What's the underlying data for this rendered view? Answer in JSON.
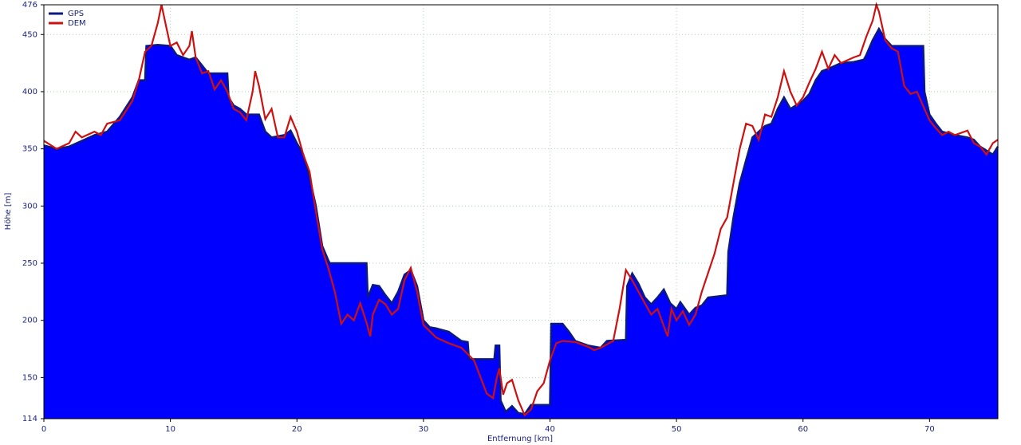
{
  "chart_data": {
    "type": "area-line",
    "xlabel": "Entfernung [km]",
    "ylabel": "Höhe [m]",
    "xlim": [
      0,
      75.4
    ],
    "ylim": [
      114,
      476
    ],
    "xticks": [
      0,
      10,
      20,
      30,
      40,
      50,
      60,
      70
    ],
    "yticks": [
      114,
      150,
      200,
      250,
      300,
      350,
      400,
      450,
      476
    ],
    "grid": true,
    "legend": "top-left",
    "series": [
      {
        "name": "GPS",
        "color": "#0000ff",
        "line_color": "#0a1a80",
        "x": [
          0,
          1,
          2,
          3,
          4,
          5,
          6,
          7,
          7.5,
          8,
          8.1,
          9,
          10,
          10.5,
          11,
          11.5,
          12,
          12.5,
          13,
          14,
          14.5,
          14.6,
          15,
          15.5,
          16,
          17,
          17.5,
          18,
          19,
          19.5,
          20,
          20.5,
          21,
          21.5,
          22,
          22.5,
          22.6,
          25.5,
          25.6,
          26,
          26.5,
          27,
          27.5,
          28,
          28.5,
          29,
          29.5,
          30,
          30.5,
          31,
          32,
          33,
          33.5,
          33.6,
          35,
          35.6,
          35.7,
          36,
          36.1,
          36.5,
          37,
          37.5,
          38,
          38.5,
          40,
          40.1,
          41,
          41.5,
          42,
          43,
          44,
          44.5,
          46,
          46.1,
          46.5,
          47,
          47.5,
          48,
          48.5,
          49,
          49.5,
          50,
          50.3,
          51,
          51.5,
          52,
          52.5,
          54,
          54.1,
          54.5,
          55,
          55.5,
          56,
          57,
          57.5,
          58,
          58.5,
          59,
          60,
          60.5,
          61,
          61.5,
          62,
          63,
          64,
          64.8,
          65,
          65.5,
          66,
          66.5,
          67,
          69.5,
          69.6,
          70,
          70.5,
          71,
          72,
          73,
          73.5,
          74,
          75,
          75.4
        ],
        "values": [
          353,
          350,
          352,
          357,
          362,
          365,
          378,
          395,
          410,
          410,
          440,
          441,
          440,
          432,
          430,
          428,
          430,
          423,
          416,
          416,
          416,
          395,
          388,
          385,
          380,
          380,
          365,
          360,
          362,
          366,
          355,
          345,
          325,
          300,
          265,
          252,
          250,
          250,
          220,
          231,
          230,
          222,
          215,
          225,
          240,
          244,
          230,
          200,
          194,
          193,
          190,
          182,
          181,
          166,
          166,
          166,
          178,
          178,
          130,
          120,
          125,
          119,
          118,
          126,
          126,
          197,
          197,
          190,
          182,
          178,
          176,
          182,
          183,
          230,
          241,
          232,
          220,
          214,
          220,
          227,
          215,
          210,
          216,
          205,
          211,
          213,
          220,
          222,
          260,
          290,
          320,
          340,
          360,
          370,
          372,
          385,
          395,
          385,
          392,
          398,
          410,
          418,
          420,
          425,
          426,
          428,
          432,
          445,
          455,
          446,
          440,
          440,
          400,
          380,
          372,
          365,
          362,
          360,
          358,
          352,
          345,
          352
        ]
      },
      {
        "name": "DEM",
        "color": "#cc1111",
        "x": [
          0,
          1,
          2,
          2.5,
          3,
          4,
          4.5,
          5,
          6,
          7,
          7.5,
          8,
          8.5,
          9,
          9.3,
          9.7,
          10,
          10.5,
          11,
          11.5,
          11.7,
          12,
          12.5,
          13,
          13.5,
          14,
          14.5,
          15,
          15.5,
          16,
          16.5,
          16.7,
          17,
          17.5,
          18,
          18.5,
          19,
          19.5,
          20,
          20.5,
          21,
          21.5,
          22,
          22.5,
          23,
          23.5,
          24,
          24.5,
          25,
          25.5,
          25.8,
          26,
          26.5,
          27,
          27.5,
          28,
          28.5,
          29,
          29.5,
          30,
          31,
          32,
          33,
          34,
          35,
          35.5,
          35.8,
          36,
          36.3,
          36.6,
          37,
          37.5,
          38,
          38.5,
          39,
          39.5,
          40,
          40.5,
          41,
          42,
          43,
          43.5,
          44,
          45,
          45.5,
          46,
          46.5,
          47,
          47.5,
          48,
          48.5,
          49,
          49.3,
          49.6,
          50,
          50.5,
          51,
          51.5,
          52,
          53,
          53.5,
          54,
          54.5,
          55,
          55.5,
          56,
          56.5,
          57,
          57.5,
          58,
          58.5,
          59,
          59.5,
          60,
          60.5,
          61,
          61.5,
          62,
          62.5,
          63,
          64,
          64.5,
          65,
          65.5,
          65.8,
          66,
          66.5,
          67,
          67.5,
          68,
          68.5,
          69,
          70,
          70.5,
          71,
          71.5,
          72,
          73,
          73.5,
          74,
          74.5,
          75,
          75.4
        ],
        "values": [
          357,
          350,
          355,
          365,
          360,
          365,
          362,
          372,
          375,
          392,
          410,
          435,
          440,
          460,
          476,
          455,
          440,
          443,
          432,
          440,
          453,
          430,
          416,
          418,
          402,
          410,
          400,
          385,
          382,
          375,
          400,
          418,
          405,
          376,
          385,
          360,
          360,
          378,
          365,
          345,
          330,
          295,
          262,
          245,
          225,
          197,
          205,
          200,
          215,
          198,
          186,
          205,
          218,
          214,
          205,
          210,
          235,
          246,
          225,
          196,
          185,
          180,
          176,
          165,
          136,
          132,
          150,
          158,
          135,
          145,
          148,
          130,
          117,
          122,
          138,
          145,
          165,
          180,
          182,
          181,
          177,
          174,
          176,
          182,
          210,
          244,
          235,
          225,
          215,
          205,
          210,
          195,
          186,
          210,
          200,
          208,
          196,
          205,
          225,
          258,
          280,
          290,
          320,
          350,
          372,
          370,
          358,
          380,
          378,
          395,
          418,
          400,
          388,
          395,
          408,
          420,
          435,
          420,
          432,
          425,
          430,
          432,
          448,
          462,
          476,
          470,
          445,
          438,
          435,
          405,
          398,
          400,
          375,
          368,
          362,
          365,
          362,
          366,
          355,
          352,
          345,
          355,
          358
        ]
      }
    ]
  }
}
